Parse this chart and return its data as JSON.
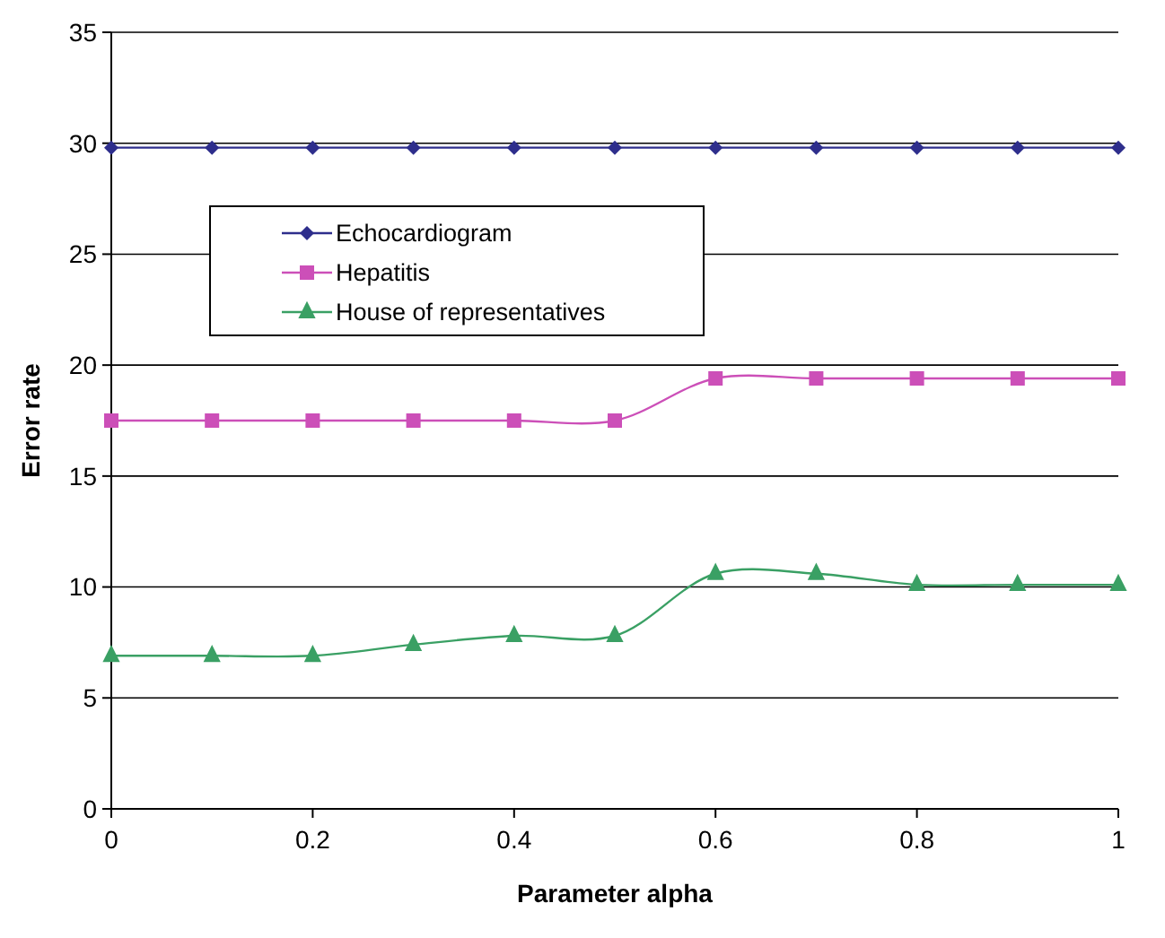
{
  "chart_data": {
    "type": "line",
    "xlabel": "Parameter alpha",
    "ylabel": "Error rate",
    "x": [
      0,
      0.1,
      0.2,
      0.3,
      0.4,
      0.5,
      0.6,
      0.7,
      0.8,
      0.9,
      1
    ],
    "series": [
      {
        "name": "Echocardiogram",
        "color": "#2e2e8c",
        "marker": "diamond",
        "values": [
          29.8,
          29.8,
          29.8,
          29.8,
          29.8,
          29.8,
          29.8,
          29.8,
          29.8,
          29.8,
          29.8
        ]
      },
      {
        "name": "Hepatitis",
        "color": "#cc4fb8",
        "marker": "square",
        "values": [
          17.5,
          17.5,
          17.5,
          17.5,
          17.5,
          17.5,
          19.4,
          19.4,
          19.4,
          19.4,
          19.4
        ]
      },
      {
        "name": "House of representatives",
        "color": "#3aa064",
        "marker": "triangle",
        "values": [
          6.9,
          6.9,
          6.9,
          7.4,
          7.8,
          7.8,
          10.6,
          10.6,
          10.1,
          10.1,
          10.1
        ]
      }
    ],
    "xlim": [
      0,
      1
    ],
    "xticks": [
      0,
      0.2,
      0.4,
      0.6,
      0.8,
      1
    ],
    "ylim": [
      0,
      35
    ],
    "yticks": [
      0,
      5,
      10,
      15,
      20,
      25,
      30,
      35
    ],
    "grid": "y",
    "legend": "top left"
  }
}
